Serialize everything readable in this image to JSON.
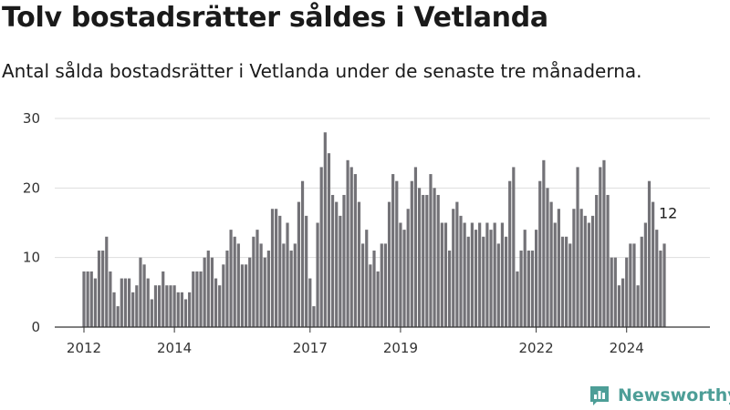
{
  "header": {
    "title": "Tolv bostadsrätter såldes i Vetlanda",
    "subtitle": "Antal sålda bostadsrätter i Vetlanda under de senaste tre månaderna."
  },
  "brand": {
    "name": "Newsworthy",
    "icon": "newsworthy-logo-icon",
    "color": "#4d9e97"
  },
  "colors": {
    "bar": "#737277",
    "highlight": "#2a9d91",
    "grid": "#dddddd",
    "axis": "#333333"
  },
  "chart_data": {
    "type": "bar",
    "title": "",
    "xlabel": "",
    "ylabel": "",
    "ylim": [
      0,
      30
    ],
    "yticks": [
      0,
      10,
      20,
      30
    ],
    "grid": true,
    "x_ticks": [
      {
        "label": "2012",
        "value": "2012-01"
      },
      {
        "label": "2014",
        "value": "2014-01"
      },
      {
        "label": "2017",
        "value": "2017-01"
      },
      {
        "label": "2019",
        "value": "2019-01"
      },
      {
        "label": "2022",
        "value": "2022-01"
      },
      {
        "label": "2024",
        "value": "2024-01"
      }
    ],
    "first_month": "2012-01",
    "values": [
      8,
      8,
      8,
      7,
      11,
      11,
      13,
      8,
      5,
      3,
      7,
      7,
      7,
      5,
      6,
      10,
      9,
      7,
      4,
      6,
      6,
      8,
      6,
      6,
      6,
      5,
      5,
      4,
      5,
      8,
      8,
      8,
      10,
      11,
      10,
      7,
      6,
      9,
      11,
      14,
      13,
      12,
      9,
      9,
      10,
      13,
      14,
      12,
      10,
      11,
      17,
      17,
      16,
      12,
      15,
      11,
      12,
      18,
      21,
      16,
      7,
      3,
      15,
      23,
      28,
      25,
      19,
      18,
      16,
      19,
      24,
      23,
      22,
      18,
      12,
      14,
      9,
      11,
      8,
      12,
      12,
      18,
      22,
      21,
      15,
      14,
      17,
      21,
      23,
      20,
      19,
      19,
      22,
      20,
      19,
      15,
      15,
      11,
      17,
      18,
      16,
      15,
      13,
      15,
      14,
      15,
      13,
      15,
      14,
      15,
      12,
      15,
      13,
      21,
      23,
      8,
      11,
      14,
      11,
      11,
      14,
      21,
      24,
      20,
      18,
      15,
      17,
      13,
      13,
      12,
      17,
      23,
      17,
      16,
      15,
      16,
      19,
      23,
      24,
      19,
      10,
      10,
      6,
      7,
      10,
      12,
      12,
      6,
      13,
      15,
      21,
      18,
      14,
      11,
      12
    ],
    "highlight": {
      "index": 155,
      "value": 12,
      "label": "12"
    }
  }
}
